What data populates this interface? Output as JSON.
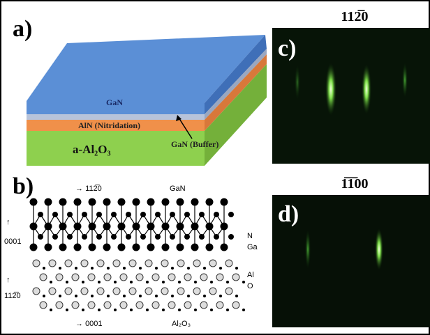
{
  "panels": {
    "a": {
      "label": "a)",
      "layers": {
        "top": "GaN",
        "buffer": "GaN (Buffer)",
        "nitridation": "AlN (Nitridation)",
        "substrate": "a-Al₂O₃"
      }
    },
    "b": {
      "label": "b)",
      "top_direction": "112̅0",
      "top_material": "GaN",
      "vertical_direction_upper": "0001",
      "atom_n": "N",
      "atom_ga": "Ga",
      "atom_al": "Al",
      "atom_o": "O",
      "vertical_direction_lower": "112̅0",
      "bottom_direction": "0001",
      "bottom_material": "Al₂O₃"
    },
    "c": {
      "label": "c)",
      "direction": "112̅0"
    },
    "d": {
      "label": "d)",
      "direction": "1̅1̅00"
    }
  }
}
